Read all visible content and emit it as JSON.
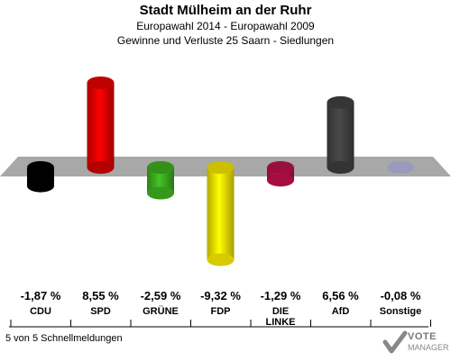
{
  "header": {
    "title": "Stadt Mülheim an der Ruhr",
    "subtitle": "Europawahl 2014 - Europawahl 2009",
    "subtitle2": "Gewinne und Verluste 25 Saarn - Siedlungen"
  },
  "chart_data": {
    "type": "bar",
    "title": "Stadt Mülheim an der Ruhr",
    "categories": [
      "CDU",
      "SPD",
      "GRÜNE",
      "FDP",
      "DIE LINKE",
      "AfD",
      "Sonstige"
    ],
    "values": [
      -1.87,
      8.55,
      -2.59,
      -9.32,
      -1.29,
      6.56,
      -0.08
    ],
    "value_labels": [
      "-1,87 %",
      "8,55 %",
      "-2,59 %",
      "-9,32 %",
      "-1,29 %",
      "6,56 %",
      "-0,08 %"
    ],
    "colors": [
      "#000000",
      "#e00000",
      "#3caa1e",
      "#f0e000",
      "#b8104a",
      "#404040",
      "#9a9ac0"
    ],
    "ylim": [
      -9.32,
      8.55
    ],
    "grid": false,
    "legend": "none"
  },
  "footer": {
    "text": "5 von 5 Schnellmeldungen"
  },
  "logo": {
    "text": "VOTE",
    "sub": "MANAGER"
  }
}
